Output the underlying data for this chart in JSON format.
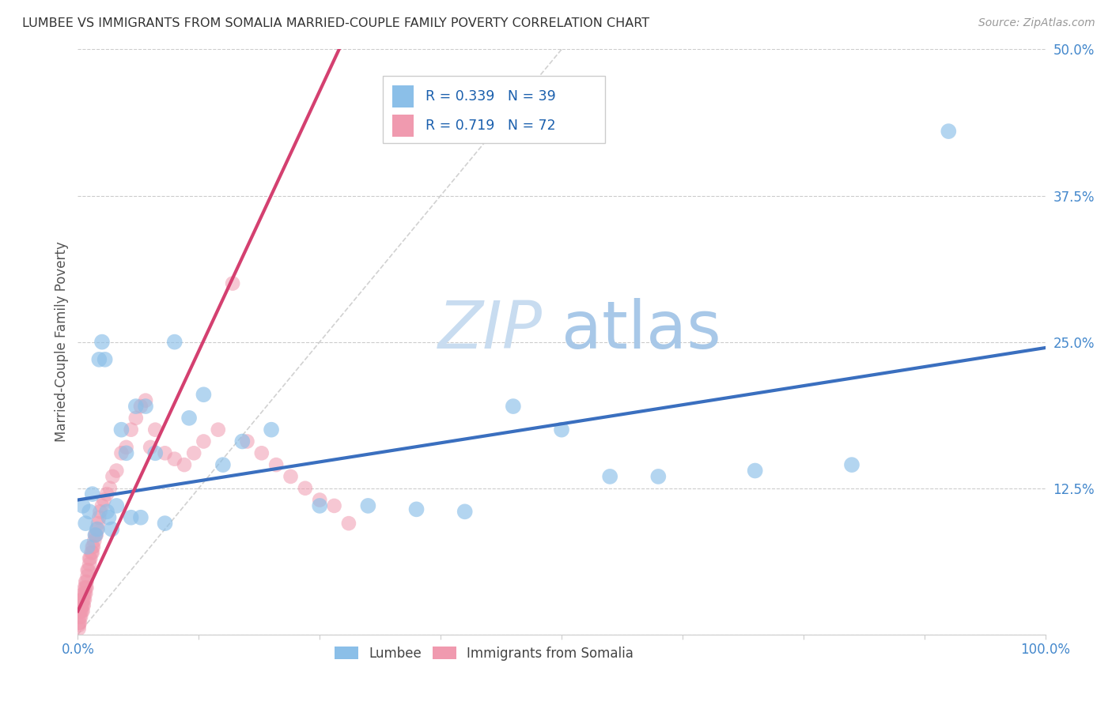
{
  "title": "LUMBEE VS IMMIGRANTS FROM SOMALIA MARRIED-COUPLE FAMILY POVERTY CORRELATION CHART",
  "source": "Source: ZipAtlas.com",
  "ylabel_label": "Married-Couple Family Poverty",
  "legend_labels": [
    "Lumbee",
    "Immigrants from Somalia"
  ],
  "lumbee_R": "0.339",
  "lumbee_N": "39",
  "somalia_R": "0.719",
  "somalia_N": "72",
  "lumbee_color": "#8BBFE8",
  "somalia_color": "#F09AAF",
  "lumbee_line_color": "#3A6FBF",
  "somalia_line_color": "#D44070",
  "grid_color": "#CCCCCC",
  "watermark_color": "#C8DCF0",
  "title_color": "#333333",
  "source_color": "#999999",
  "tick_color": "#4488CC",
  "xlim": [
    0.0,
    1.0
  ],
  "ylim": [
    0.0,
    0.5
  ],
  "lumbee_x": [
    0.005,
    0.008,
    0.01,
    0.012,
    0.015,
    0.018,
    0.02,
    0.022,
    0.025,
    0.028,
    0.03,
    0.032,
    0.035,
    0.04,
    0.045,
    0.05,
    0.055,
    0.06,
    0.065,
    0.07,
    0.08,
    0.09,
    0.1,
    0.115,
    0.13,
    0.15,
    0.17,
    0.2,
    0.25,
    0.3,
    0.35,
    0.4,
    0.45,
    0.5,
    0.55,
    0.6,
    0.7,
    0.8,
    0.9
  ],
  "lumbee_y": [
    0.11,
    0.095,
    0.075,
    0.105,
    0.12,
    0.085,
    0.09,
    0.235,
    0.25,
    0.235,
    0.105,
    0.1,
    0.09,
    0.11,
    0.175,
    0.155,
    0.1,
    0.195,
    0.1,
    0.195,
    0.155,
    0.095,
    0.25,
    0.185,
    0.205,
    0.145,
    0.165,
    0.175,
    0.11,
    0.11,
    0.107,
    0.105,
    0.195,
    0.175,
    0.135,
    0.135,
    0.14,
    0.145,
    0.43
  ],
  "somalia_x": [
    0.001,
    0.001,
    0.001,
    0.002,
    0.002,
    0.002,
    0.003,
    0.003,
    0.003,
    0.004,
    0.004,
    0.004,
    0.005,
    0.005,
    0.005,
    0.006,
    0.006,
    0.006,
    0.007,
    0.007,
    0.007,
    0.008,
    0.008,
    0.008,
    0.009,
    0.009,
    0.01,
    0.01,
    0.011,
    0.012,
    0.012,
    0.013,
    0.014,
    0.015,
    0.015,
    0.016,
    0.017,
    0.018,
    0.019,
    0.02,
    0.021,
    0.022,
    0.023,
    0.025,
    0.027,
    0.03,
    0.033,
    0.036,
    0.04,
    0.045,
    0.05,
    0.055,
    0.06,
    0.065,
    0.07,
    0.075,
    0.08,
    0.09,
    0.1,
    0.11,
    0.12,
    0.13,
    0.145,
    0.16,
    0.175,
    0.19,
    0.205,
    0.22,
    0.235,
    0.25,
    0.265,
    0.28
  ],
  "somalia_y": [
    0.005,
    0.008,
    0.01,
    0.01,
    0.015,
    0.02,
    0.015,
    0.02,
    0.025,
    0.02,
    0.025,
    0.03,
    0.02,
    0.025,
    0.03,
    0.025,
    0.03,
    0.035,
    0.03,
    0.035,
    0.04,
    0.035,
    0.04,
    0.045,
    0.04,
    0.045,
    0.05,
    0.055,
    0.055,
    0.06,
    0.065,
    0.065,
    0.07,
    0.07,
    0.075,
    0.075,
    0.08,
    0.085,
    0.085,
    0.09,
    0.095,
    0.1,
    0.105,
    0.11,
    0.115,
    0.12,
    0.125,
    0.135,
    0.14,
    0.155,
    0.16,
    0.175,
    0.185,
    0.195,
    0.2,
    0.16,
    0.175,
    0.155,
    0.15,
    0.145,
    0.155,
    0.165,
    0.175,
    0.3,
    0.165,
    0.155,
    0.145,
    0.135,
    0.125,
    0.115,
    0.11,
    0.095
  ],
  "lumbee_line_x0": 0.0,
  "lumbee_line_y0": 0.115,
  "lumbee_line_x1": 1.0,
  "lumbee_line_y1": 0.245,
  "somalia_line_x0": 0.0,
  "somalia_line_y0": 0.02,
  "somalia_line_x1": 0.27,
  "somalia_line_y1": 0.5
}
